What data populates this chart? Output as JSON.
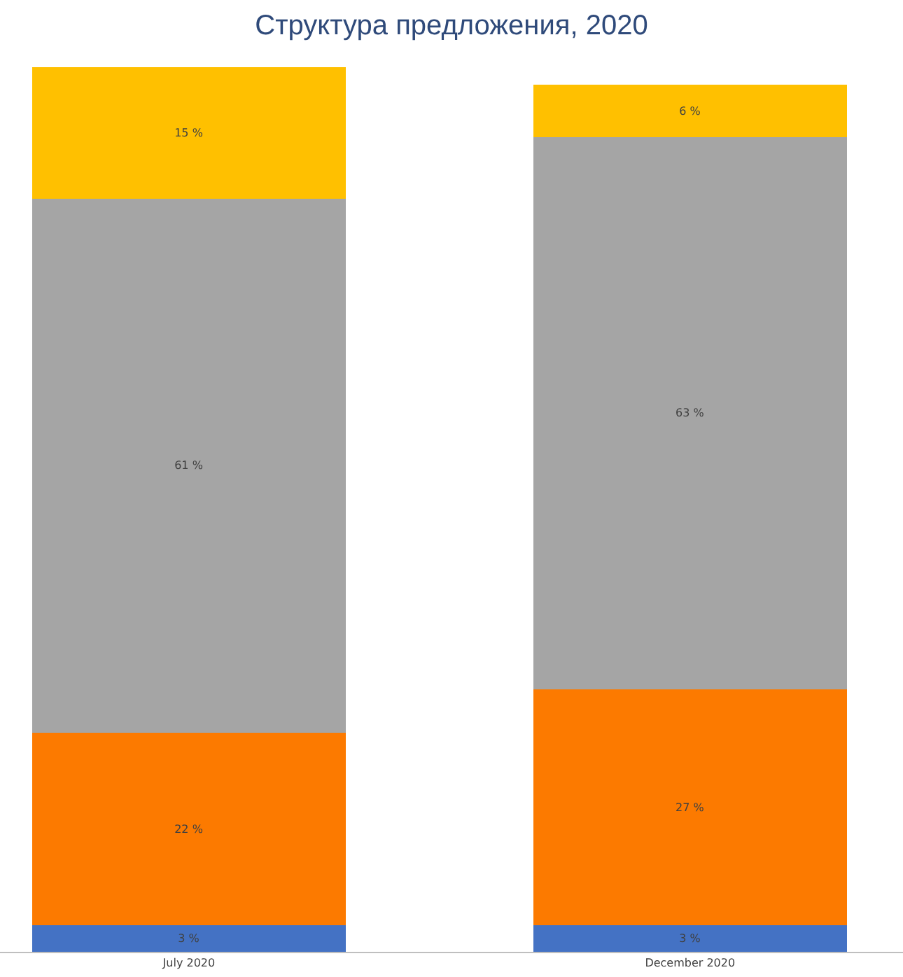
{
  "chart_data": {
    "type": "bar",
    "title": "Структура предложения, 2020",
    "stacked": true,
    "categories": [
      "July 2020",
      "December 2020"
    ],
    "series": [
      {
        "color": "#4472c4",
        "values": [
          3,
          3
        ],
        "value_labels": [
          "3 %",
          "3 %"
        ]
      },
      {
        "color": "#fc7a00",
        "values": [
          22,
          27
        ],
        "value_labels": [
          "22 %",
          "27 %"
        ]
      },
      {
        "color": "#a5a5a5",
        "values": [
          61,
          63
        ],
        "value_labels": [
          "61 %",
          "63 %"
        ]
      },
      {
        "color": "#ffc000",
        "values": [
          15,
          6
        ],
        "value_labels": [
          "15 %",
          "6 %"
        ]
      }
    ],
    "tick_labels": "x"
  }
}
